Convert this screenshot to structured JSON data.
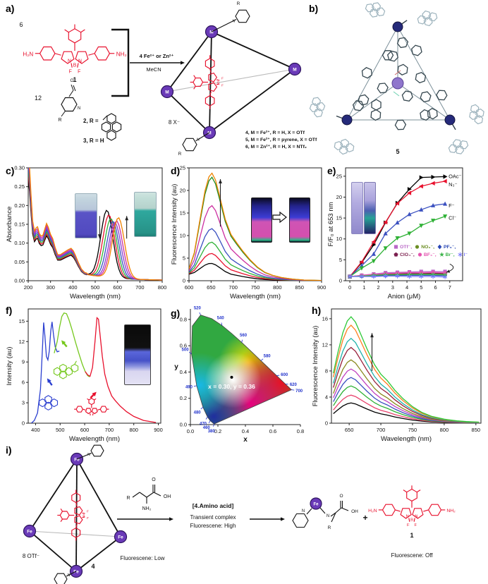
{
  "figure": {
    "background": "#ffffff"
  },
  "panels": {
    "a": {
      "label": "a)"
    },
    "b": {
      "label": "b)",
      "compound": "5"
    },
    "c": {
      "label": "c)"
    },
    "d": {
      "label": "d)"
    },
    "e": {
      "label": "e)"
    },
    "f": {
      "label": "f)"
    },
    "g": {
      "label": "g)"
    },
    "h": {
      "label": "h)"
    },
    "i": {
      "label": "i)"
    }
  },
  "molecule_text": {
    "h2n": "H₂N",
    "nh2": "NH₂",
    "n": "N",
    "b": "B",
    "f": "F",
    "o": "O",
    "oh": "OH",
    "r": "R",
    "m": "M",
    "fe": "Fe",
    "plus": "+"
  },
  "scheme_a": {
    "count1": "6",
    "compound1": "1",
    "count2": "12",
    "compound2_prefix": "2, R =",
    "compound3": "3, R = H",
    "conditions_top": "4 Fe²⁺ or Zn²⁺",
    "conditions_bottom": "MeCN",
    "counterions": "8 X⁻",
    "products": [
      "4, M = Fe²⁺, R = H, X = OTf",
      "5, M = Fe²⁺, R = pyrene, X = OTf",
      "6, M = Zn²⁺, R = H, X = NTf₂"
    ]
  },
  "scheme_i": {
    "counterions": "8 OTf⁻",
    "cage_number": "4",
    "cage_status": "Fluorescene: Low",
    "reagent_title": "[4.Amino acid]",
    "reagent_line1": "Transient complex",
    "reagent_line2": "Fluorescene: High",
    "product_number": "1",
    "product_status": "Fluorescene: Off"
  },
  "chart_data": [
    {
      "panel": "c",
      "type": "line",
      "xlabel": "Wavelength (nm)",
      "ylabel": "Absorbance",
      "xlim": [
        200,
        800
      ],
      "ylim": [
        0,
        0.3
      ],
      "xticks": [
        200,
        300,
        400,
        500,
        600,
        700,
        800
      ],
      "yticks": [
        0,
        0.05,
        0.1,
        0.15,
        0.2,
        0.25,
        0.3
      ],
      "yfmt": "2f",
      "uv_profile": [
        [
          200,
          0.305
        ],
        [
          206,
          0.27
        ],
        [
          212,
          0.21
        ],
        [
          220,
          0.142
        ],
        [
          228,
          0.118
        ],
        [
          236,
          0.126
        ],
        [
          242,
          0.128
        ],
        [
          250,
          0.112
        ],
        [
          258,
          0.106
        ],
        [
          266,
          0.108
        ],
        [
          274,
          0.122
        ],
        [
          282,
          0.136
        ],
        [
          290,
          0.127
        ],
        [
          300,
          0.11
        ],
        [
          310,
          0.1
        ],
        [
          320,
          0.08
        ],
        [
          332,
          0.062
        ],
        [
          344,
          0.062
        ],
        [
          356,
          0.066
        ],
        [
          368,
          0.07
        ],
        [
          380,
          0.074
        ],
        [
          392,
          0.077
        ],
        [
          402,
          0.071
        ],
        [
          412,
          0.06
        ],
        [
          424,
          0.044
        ],
        [
          438,
          0.028
        ],
        [
          452,
          0.02
        ],
        [
          462,
          0.018
        ]
      ],
      "series": [
        {
          "color": "#000000",
          "uv_scale": 0.88,
          "center": 552,
          "height": 0.178
        },
        {
          "color": "#e8112d",
          "uv_scale": 0.92,
          "center": 561,
          "height": 0.166
        },
        {
          "color": "#2eb135",
          "uv_scale": 0.96,
          "center": 570,
          "height": 0.157
        },
        {
          "color": "#3a50c0",
          "uv_scale": 1.0,
          "center": 579,
          "height": 0.15
        },
        {
          "color": "#8a3fd0",
          "uv_scale": 1.04,
          "center": 588,
          "height": 0.148
        },
        {
          "color": "#cc2fa0",
          "uv_scale": 1.08,
          "center": 596,
          "height": 0.152
        },
        {
          "color": "#f08300",
          "uv_scale": 1.12,
          "center": 604,
          "height": 0.161
        }
      ],
      "annotations": [
        {
          "kind": "varrow",
          "x": 520,
          "y1": 0.172,
          "y2": 0.112
        },
        {
          "kind": "varrow",
          "x": 641,
          "y1": 0.112,
          "y2": 0.172
        }
      ]
    },
    {
      "panel": "d",
      "type": "line",
      "xlabel": "Wavelength (nm)",
      "ylabel": "Fluorescence Intensity (au)",
      "xlim": [
        600,
        900
      ],
      "ylim": [
        0,
        25
      ],
      "xticks": [
        600,
        650,
        700,
        750,
        800,
        850,
        900
      ],
      "yticks": [
        0,
        5,
        10,
        15,
        20,
        25
      ],
      "profile": [
        [
          600,
          0.06
        ],
        [
          612,
          0.22
        ],
        [
          624,
          0.52
        ],
        [
          636,
          0.82
        ],
        [
          645,
          0.96
        ],
        [
          652,
          1.0
        ],
        [
          660,
          0.94
        ],
        [
          670,
          0.78
        ],
        [
          682,
          0.58
        ],
        [
          695,
          0.44
        ],
        [
          708,
          0.36
        ],
        [
          722,
          0.28
        ],
        [
          738,
          0.2
        ],
        [
          755,
          0.13
        ],
        [
          772,
          0.08
        ],
        [
          790,
          0.05
        ],
        [
          810,
          0.03
        ],
        [
          835,
          0.015
        ],
        [
          860,
          0.007
        ],
        [
          900,
          0.002
        ]
      ],
      "base": 1.25,
      "base_decay": 90,
      "series": [
        {
          "color": "#000000",
          "peak": 3.3
        },
        {
          "color": "#e8112d",
          "peak": 5.5
        },
        {
          "color": "#2eb135",
          "peak": 8.0
        },
        {
          "color": "#3a50c0",
          "peak": 11.0
        },
        {
          "color": "#cc2fa0",
          "peak": 16.1
        },
        {
          "color": "#1f8c1f",
          "peak": 22.4
        },
        {
          "color": "#f08300",
          "peak": 23.3
        }
      ],
      "annotations": [
        {
          "kind": "varrow",
          "x": 671,
          "y1": 12,
          "y2": 22.5
        }
      ]
    },
    {
      "panel": "e",
      "type": "line",
      "xlabel": "Anion (μM)",
      "ylabel": "F/F₀ at 653 nm",
      "xlim": [
        -0.3,
        7.9
      ],
      "ylim": [
        0,
        27
      ],
      "xticks": [
        0,
        1,
        2,
        3,
        4,
        5,
        6,
        7
      ],
      "yticks": [
        0,
        5,
        10,
        15,
        20,
        25
      ],
      "x": [
        0,
        0.83,
        1.67,
        2.5,
        3.33,
        4.17,
        5.0,
        5.83,
        6.67
      ],
      "series": [
        {
          "color": "#000000",
          "marker": "tri-right",
          "end_label": "OAc⁻",
          "ldy": -1,
          "y": [
            1,
            4.3,
            8.6,
            13.9,
            18.6,
            21.9,
            24.7,
            24.8,
            24.9
          ]
        },
        {
          "color": "#e8112d",
          "marker": "tri-left",
          "end_label": "N₃⁻",
          "ldy": 4,
          "y": [
            1,
            4.5,
            9.3,
            14.0,
            18.5,
            21.0,
            22.6,
            23.3,
            23.8
          ]
        },
        {
          "color": "#3a50c0",
          "marker": "tri-up",
          "end_label": "F⁻",
          "ldy": 2,
          "y": [
            1,
            3.6,
            6.4,
            11.3,
            13.9,
            15.9,
            17.0,
            18.0,
            18.4
          ]
        },
        {
          "color": "#2eb135",
          "marker": "tri-down",
          "end_label": "Cl⁻",
          "ldy": 2,
          "y": [
            1,
            3.0,
            4.7,
            7.8,
            10.2,
            11.3,
            13.2,
            14.4,
            15.4
          ]
        },
        {
          "color": "#b968c7",
          "marker": "square",
          "y": [
            1,
            1.3,
            1.6,
            1.9,
            2.0,
            2.1,
            2.2,
            2.2,
            2.2
          ]
        },
        {
          "color": "#6b8e23",
          "marker": "circle",
          "y": [
            1,
            1.2,
            1.4,
            1.5,
            1.6,
            1.6,
            1.7,
            1.7,
            1.6
          ]
        },
        {
          "color": "#2846b4",
          "marker": "diamond",
          "y": [
            1,
            1.1,
            1.2,
            1.2,
            1.3,
            1.3,
            1.3,
            1.3,
            1.2
          ]
        },
        {
          "color": "#7b1f4e",
          "marker": "pentagon",
          "y": [
            1,
            1.2,
            1.4,
            1.6,
            1.7,
            1.7,
            1.8,
            1.8,
            1.7
          ]
        },
        {
          "color": "#e455b0",
          "marker": "circle",
          "y": [
            1,
            1.3,
            1.5,
            1.7,
            1.8,
            1.9,
            1.9,
            2.0,
            1.9
          ]
        },
        {
          "color": "#3cb44a",
          "marker": "star",
          "y": [
            1,
            1.1,
            1.3,
            1.4,
            1.4,
            1.5,
            1.5,
            1.5,
            1.4
          ]
        },
        {
          "color": "#7a7aff",
          "marker": "asterisk",
          "y": [
            1,
            1.0,
            1.0,
            1.1,
            1.1,
            1.0,
            1.0,
            1.0,
            0.9
          ]
        }
      ],
      "legend_rows": [
        [
          {
            "marker": "square",
            "color": "#b968c7",
            "label": "OTf⁻,"
          },
          {
            "marker": "circle",
            "color": "#6b8e23",
            "label": "NO₃⁻,"
          },
          {
            "marker": "diamond",
            "color": "#2846b4",
            "label": "PF₆⁻,"
          }
        ],
        [
          {
            "marker": "pentagon",
            "color": "#7b1f4e",
            "label": "ClO₄⁻,"
          },
          {
            "marker": "circle",
            "color": "#e455b0",
            "label": "BF₄⁻,"
          },
          {
            "marker": "star",
            "color": "#3cb44a",
            "label": "Br⁻,"
          },
          {
            "marker": "asterisk",
            "color": "#7a7aff",
            "label": "I⁻"
          }
        ]
      ],
      "annotations": [
        {
          "kind": "carrow",
          "x1": 7.0,
          "y1": 4.0,
          "cx": 7.6,
          "cy": 3.0,
          "x2": 6.75,
          "y2": 2.0
        }
      ]
    },
    {
      "panel": "f",
      "type": "line",
      "xlabel": "Wavelength (nm)",
      "ylabel": "Intensity (au)",
      "xlim": [
        370,
        910
      ],
      "ylim": [
        0,
        16.8
      ],
      "xticks": [
        400,
        500,
        600,
        700,
        800,
        900
      ],
      "yticks": [
        0,
        3,
        6,
        9,
        12,
        15
      ],
      "series": [
        {
          "color": "#2b3fd0",
          "points": [
            [
              383,
              0
            ],
            [
              395,
              0.4
            ],
            [
              408,
              1.5
            ],
            [
              420,
              5
            ],
            [
              428,
              11
            ],
            [
              433,
              14.8
            ],
            [
              438,
              12.8
            ],
            [
              444,
              9.8
            ],
            [
              450,
              9.3
            ],
            [
              456,
              10.6
            ],
            [
              462,
              13.6
            ],
            [
              467,
              14.9
            ],
            [
              473,
              13.0
            ],
            [
              480,
              11.2
            ],
            [
              488,
              10.5
            ],
            [
              497,
              10.6
            ]
          ]
        },
        {
          "color": "#76c81e",
          "points": [
            [
              476,
              10.3
            ],
            [
              488,
              12.0
            ],
            [
              498,
              14.2
            ],
            [
              507,
              15.7
            ],
            [
              516,
              16.2
            ],
            [
              526,
              16.1
            ],
            [
              536,
              15.2
            ],
            [
              548,
              13.8
            ],
            [
              562,
              12.0
            ],
            [
              576,
              10.3
            ],
            [
              590,
              8.7
            ],
            [
              602,
              7.6
            ],
            [
              612,
              7.0
            ],
            [
              620,
              6.8
            ]
          ]
        },
        {
          "color": "#e8112d",
          "points": [
            [
              602,
              7.6
            ],
            [
              612,
              7.1
            ],
            [
              622,
              6.9
            ],
            [
              632,
              8.2
            ],
            [
              642,
              12.0
            ],
            [
              650,
              15.5
            ],
            [
              656,
              15.3
            ],
            [
              664,
              12.5
            ],
            [
              672,
              9.8
            ],
            [
              682,
              7.2
            ],
            [
              695,
              5.4
            ],
            [
              710,
              4.0
            ],
            [
              725,
              3.3
            ],
            [
              745,
              2.5
            ],
            [
              770,
              1.7
            ],
            [
              800,
              1.0
            ],
            [
              840,
              0.4
            ],
            [
              890,
              0.1
            ]
          ]
        }
      ],
      "annotations": [
        {
          "kind": "sarrow",
          "x": 447,
          "y": 6.6,
          "angle": -125,
          "color": "#2b3fd0"
        },
        {
          "kind": "sarrow",
          "x": 505,
          "y": 12.2,
          "angle": -130,
          "color": "#76c81e"
        },
        {
          "kind": "sarrow",
          "x": 648,
          "y": 4.6,
          "angle": -45,
          "color": "#e8112d"
        },
        {
          "kind": "pyrene",
          "x": 452,
          "y": 3.0,
          "color": "#2b3fd0"
        },
        {
          "kind": "pyrene",
          "x": 512,
          "y": 7.6,
          "color": "#76c81e",
          "extra": true
        },
        {
          "kind": "minibod",
          "x": 628,
          "y": 2.0,
          "color": "#e8112d"
        }
      ]
    },
    {
      "panel": "g",
      "type": "cie_chromaticity",
      "xlabel": "x",
      "ylabel": "y",
      "xlim": [
        0,
        0.8
      ],
      "ylim": [
        0,
        0.88
      ],
      "xticks": [
        0,
        0.2,
        0.4,
        0.6,
        0.8
      ],
      "yticks": [
        0,
        0.2,
        0.4,
        0.6,
        0.8
      ],
      "point": {
        "x": 0.3,
        "y": 0.36
      },
      "point_label": "x = 0.30, y = 0.36",
      "wavelength_labels": [
        380,
        460,
        470,
        480,
        490,
        500,
        520,
        540,
        560,
        580,
        600,
        620,
        700
      ]
    },
    {
      "panel": "h",
      "type": "line",
      "xlabel": "Wavelength (nm)",
      "ylabel": "Fluorescence Intensity (au)",
      "xlim": [
        622,
        858
      ],
      "ylim": [
        0,
        17.5
      ],
      "xticks": [
        650,
        700,
        750,
        800,
        850
      ],
      "yticks": [
        0,
        4,
        8,
        12,
        16
      ],
      "profile": [
        [
          625,
          0.47
        ],
        [
          632,
          0.66
        ],
        [
          640,
          0.85
        ],
        [
          647,
          0.96
        ],
        [
          653,
          1.0
        ],
        [
          660,
          0.95
        ],
        [
          668,
          0.84
        ],
        [
          678,
          0.7
        ],
        [
          690,
          0.55
        ],
        [
          700,
          0.46
        ],
        [
          710,
          0.4
        ],
        [
          722,
          0.31
        ],
        [
          735,
          0.23
        ],
        [
          750,
          0.155
        ],
        [
          765,
          0.1
        ],
        [
          780,
          0.065
        ],
        [
          800,
          0.038
        ],
        [
          820,
          0.022
        ],
        [
          835,
          0.015
        ],
        [
          855,
          0.01
        ]
      ],
      "series": [
        {
          "color": "#000000",
          "peak": 3.1
        },
        {
          "color": "#e8436d",
          "peak": 4.3
        },
        {
          "color": "#2eb135",
          "peak": 5.7
        },
        {
          "color": "#3a50c0",
          "peak": 7.0
        },
        {
          "color": "#c040c0",
          "peak": 8.3
        },
        {
          "color": "#8a8a20",
          "peak": 9.7
        },
        {
          "color": "#98203a",
          "peak": 11.6
        },
        {
          "color": "#20b2aa",
          "peak": 13.0
        },
        {
          "color": "#ff7f1e",
          "peak": 15.0
        },
        {
          "color": "#2dc937",
          "peak": 16.3
        }
      ],
      "annotations": [
        {
          "kind": "varrow",
          "x": 686,
          "y1": 8.0,
          "y2": 13.8
        }
      ]
    }
  ]
}
